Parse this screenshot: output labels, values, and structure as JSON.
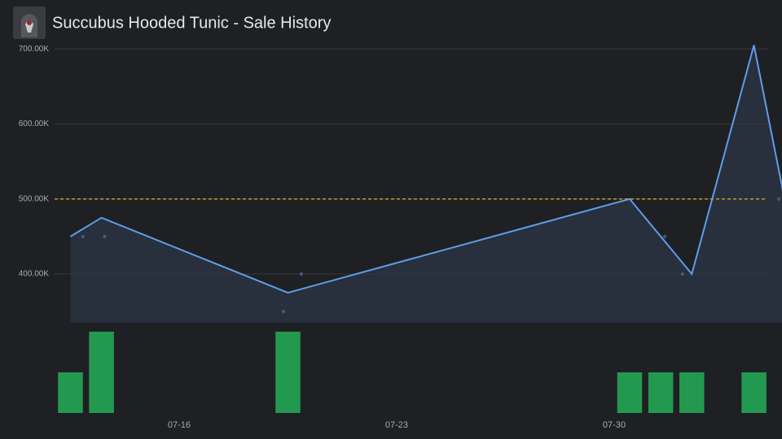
{
  "chart_data": [
    {
      "type": "line",
      "title": "Succubus Hooded Tunic - Sale History",
      "xlim": [
        12,
        35.5
      ],
      "xticks": [
        {
          "value": 16,
          "label": "07-16"
        },
        {
          "value": 23,
          "label": "07-23"
        },
        {
          "value": 30,
          "label": "07-30"
        }
      ],
      "ylim": [
        335000,
        710000
      ],
      "yticks": [
        {
          "value": 400000,
          "label": "400.00K"
        },
        {
          "value": 500000,
          "label": "500.00K"
        },
        {
          "value": 600000,
          "label": "600.00K"
        },
        {
          "value": 700000,
          "label": "700.00K"
        }
      ],
      "grid": true,
      "reference_line": {
        "value": 500000,
        "color": "#e3b12a"
      },
      "series": [
        {
          "type": "line",
          "color": "#5f9de8",
          "area_color": "#2a3242",
          "x": [
            12.5,
            13.5,
            19.5,
            30.5,
            32.5,
            34.5,
            35.5
          ],
          "values": [
            450000,
            475000,
            375000,
            500000,
            400000,
            705000,
            497000
          ]
        },
        {
          "type": "scatter",
          "color": "#3d5a82",
          "x": [
            12.9,
            13.6,
            19.36,
            19.93,
            31.63,
            32.2,
            35.3
          ],
          "values": [
            450000,
            450000,
            350000,
            400000,
            450000,
            400000,
            500000
          ]
        }
      ]
    },
    {
      "type": "bar",
      "color": "#23994f",
      "xlim": [
        12,
        35.5
      ],
      "ylim": [
        0,
        2
      ],
      "x": [
        12.5,
        13.5,
        19.5,
        30.5,
        31.5,
        32.5,
        34.5
      ],
      "values": [
        1,
        2,
        2,
        1,
        1,
        1,
        1
      ]
    }
  ]
}
